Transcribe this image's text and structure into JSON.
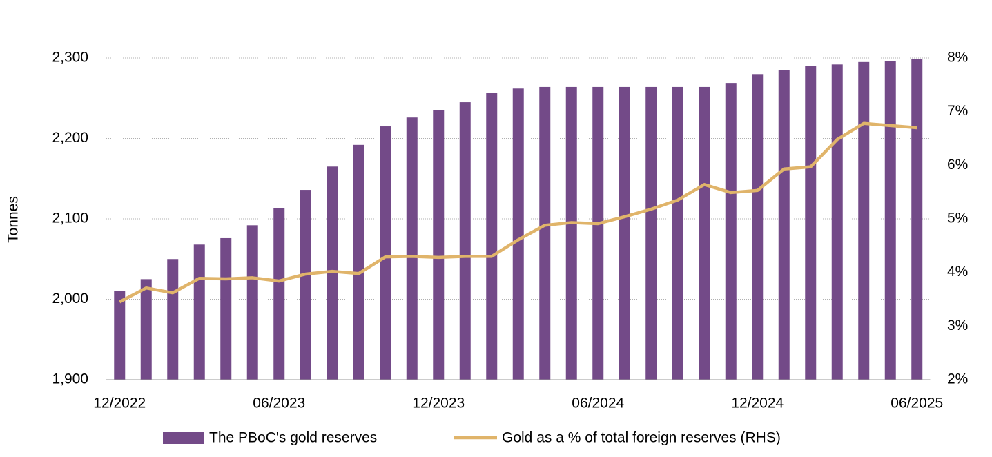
{
  "chart_data": {
    "type": "bar-line",
    "y_label": "Tonnes",
    "categories": [
      "12/2022",
      null,
      null,
      null,
      null,
      null,
      "06/2023",
      null,
      null,
      null,
      null,
      null,
      "12/2023",
      null,
      null,
      null,
      null,
      null,
      "06/2024",
      null,
      null,
      null,
      null,
      null,
      "12/2024",
      null,
      null,
      null,
      null,
      null,
      "06/2025"
    ],
    "series": [
      {
        "name": "The PBoC's gold reserves",
        "type": "bar",
        "color": "#734a88",
        "values": [
          2010,
          2025,
          2050,
          2068,
          2076,
          2092,
          2113,
          2136,
          2165,
          2192,
          2215,
          2226,
          2235,
          2245,
          2257,
          2262,
          2264,
          2264,
          2264,
          2264,
          2264,
          2264,
          2264,
          2269,
          2280,
          2285,
          2290,
          2292,
          2295,
          2296,
          2299
        ]
      },
      {
        "name": "Gold as a % of total foreign reserves (RHS)",
        "type": "line",
        "axis": "y2",
        "color": "#e0b46a",
        "values": [
          3.45,
          3.71,
          3.62,
          3.89,
          3.88,
          3.9,
          3.84,
          3.97,
          4.02,
          3.98,
          4.29,
          4.3,
          4.28,
          4.3,
          4.3,
          4.61,
          4.88,
          4.93,
          4.91,
          5.04,
          5.18,
          5.35,
          5.64,
          5.49,
          5.53,
          5.93,
          5.97,
          6.48,
          6.78,
          6.74,
          6.7
        ]
      }
    ],
    "ylim": [
      1900,
      2300
    ],
    "yticks": [
      {
        "value": 1900,
        "label": "1,900"
      },
      {
        "value": 2000,
        "label": "2,000"
      },
      {
        "value": 2100,
        "label": "2,100"
      },
      {
        "value": 2200,
        "label": "2,200"
      },
      {
        "value": 2300,
        "label": "2,300"
      }
    ],
    "y2lim": [
      2,
      8
    ],
    "y2ticks": [
      {
        "value": 2,
        "label": "2%"
      },
      {
        "value": 3,
        "label": "3%"
      },
      {
        "value": 4,
        "label": "4%"
      },
      {
        "value": 5,
        "label": "5%"
      },
      {
        "value": 6,
        "label": "6%"
      },
      {
        "value": 7,
        "label": "7%"
      },
      {
        "value": 8,
        "label": "8%"
      }
    ],
    "grid": true,
    "legend": "bottom"
  }
}
